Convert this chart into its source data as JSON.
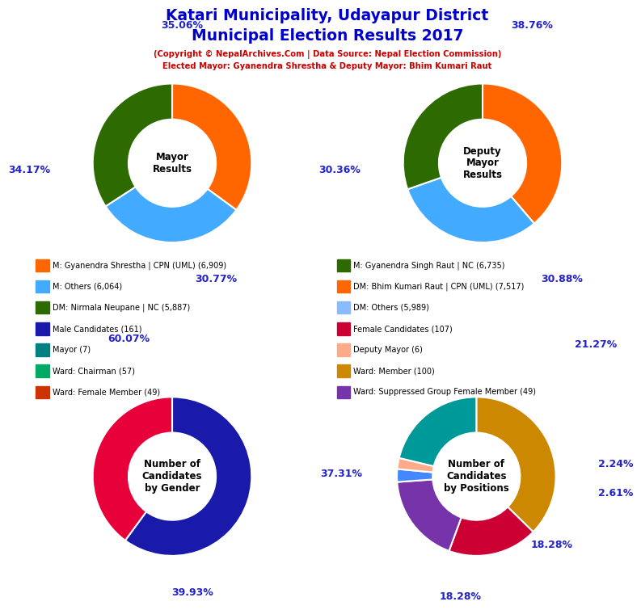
{
  "title_line1": "Katari Municipality, Udayapur District",
  "title_line2": "Municipal Election Results 2017",
  "subtitle_line1": "(Copyright © NepalArchives.Com | Data Source: Nepal Election Commission)",
  "subtitle_line2": "Elected Mayor: Gyanendra Shrestha & Deputy Mayor: Bhim Kumari Raut",
  "title_color": "#0000cc",
  "subtitle_color": "#cc0000",
  "mayor_values": [
    35.06,
    30.77,
    34.17
  ],
  "mayor_colors": [
    "#ff6600",
    "#42aaff",
    "#2d6a00"
  ],
  "mayor_center_text": "Mayor\nResults",
  "deputy_values": [
    38.76,
    30.88,
    30.36
  ],
  "deputy_colors": [
    "#ff6600",
    "#42aaff",
    "#2d6a00"
  ],
  "deputy_center_text": "Deputy\nMayor\nResults",
  "gender_values": [
    60.07,
    39.93
  ],
  "gender_colors": [
    "#1a1aaa",
    "#e8003a"
  ],
  "gender_center_text": "Number of\nCandidates\nby Gender",
  "positions_values": [
    37.31,
    18.28,
    18.28,
    2.61,
    2.24,
    21.27
  ],
  "positions_colors": [
    "#cc8800",
    "#cc0033",
    "#7733aa",
    "#4488ff",
    "#ffaa88",
    "#009999"
  ],
  "positions_center_text": "Number of\nCandidates\nby Positions",
  "legend_left": [
    {
      "label": "M: Gyanendra Shrestha | CPN (UML) (6,909)",
      "color": "#ff6600"
    },
    {
      "label": "M: Others (6,064)",
      "color": "#42aaff"
    },
    {
      "label": "DM: Nirmala Neupane | NC (5,887)",
      "color": "#2d6a00"
    },
    {
      "label": "Male Candidates (161)",
      "color": "#1a1aaa"
    },
    {
      "label": "Mayor (7)",
      "color": "#008080"
    },
    {
      "label": "Ward: Chairman (57)",
      "color": "#00aa66"
    },
    {
      "label": "Ward: Female Member (49)",
      "color": "#cc3300"
    }
  ],
  "legend_right": [
    {
      "label": "M: Gyanendra Singh Raut | NC (6,735)",
      "color": "#2d6a00"
    },
    {
      "label": "DM: Bhim Kumari Raut | CPN (UML) (7,517)",
      "color": "#ff6600"
    },
    {
      "label": "DM: Others (5,989)",
      "color": "#88bbff"
    },
    {
      "label": "Female Candidates (107)",
      "color": "#cc0033"
    },
    {
      "label": "Deputy Mayor (6)",
      "color": "#ffaa88"
    },
    {
      "label": "Ward: Member (100)",
      "color": "#cc8800"
    },
    {
      "label": "Ward: Suppressed Group Female Member (49)",
      "color": "#7733aa"
    }
  ]
}
